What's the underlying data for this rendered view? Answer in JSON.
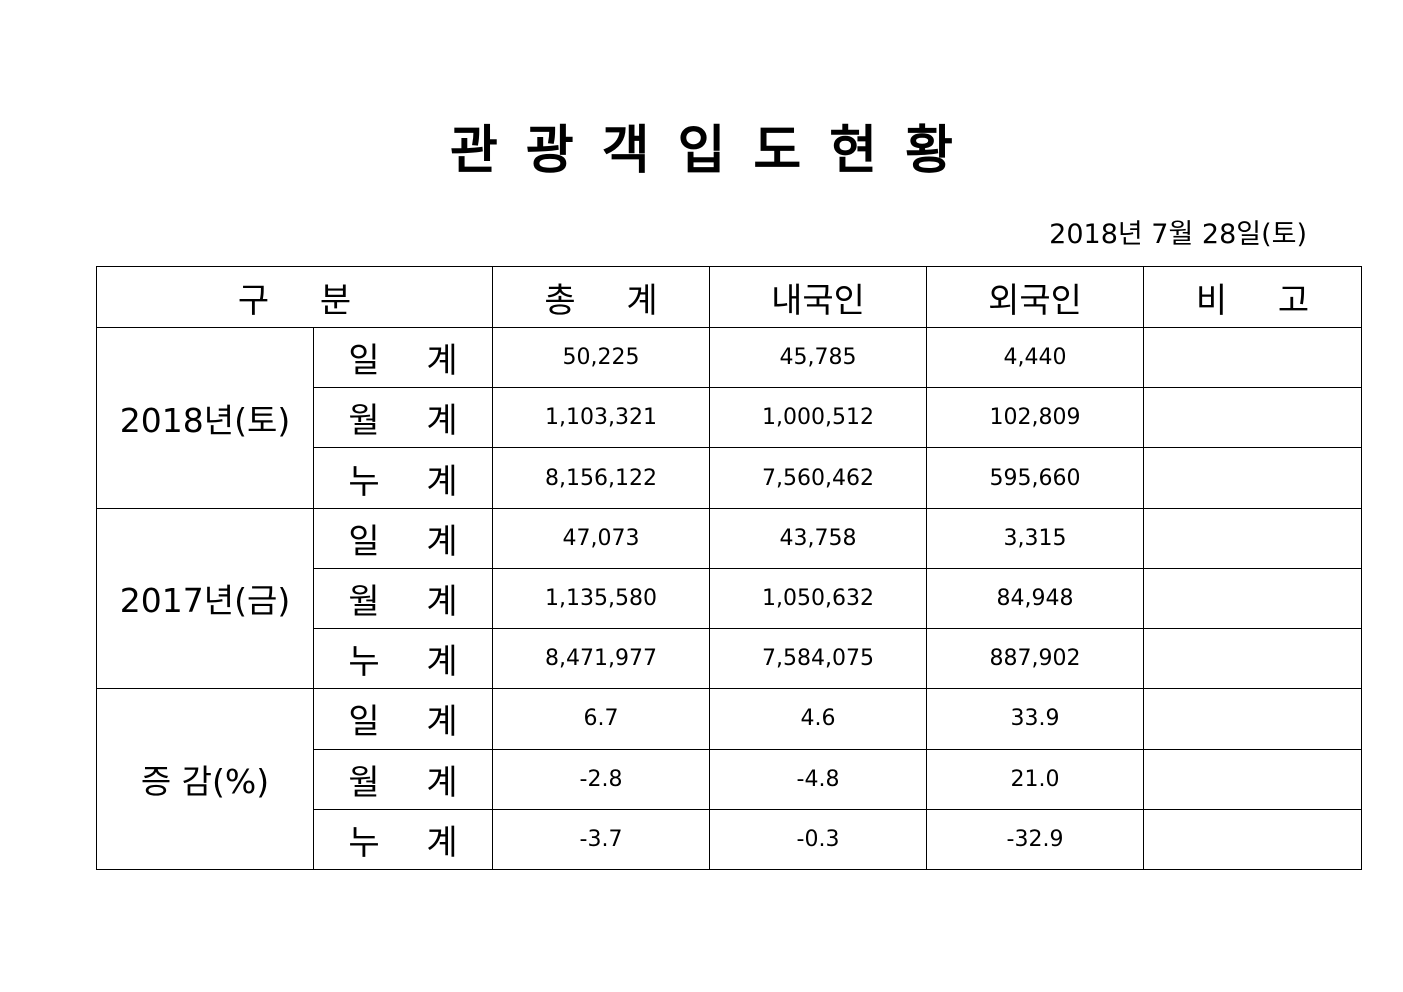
{
  "title": "관광객입도현황",
  "date": "2018년  7월  28일(토)",
  "headers": {
    "category": "구 분",
    "total": "총 계",
    "domestic": "내국인",
    "foreign": "외국인",
    "remarks": "비 고"
  },
  "groups": [
    {
      "label": "2018년(토)",
      "rows": [
        {
          "label": "일 계",
          "total": "50,225",
          "domestic": "45,785",
          "foreign": "4,440",
          "remarks": ""
        },
        {
          "label": "월 계",
          "total": "1,103,321",
          "domestic": "1,000,512",
          "foreign": "102,809",
          "remarks": ""
        },
        {
          "label": "누 계",
          "total": "8,156,122",
          "domestic": "7,560,462",
          "foreign": "595,660",
          "remarks": ""
        }
      ]
    },
    {
      "label": "2017년(금)",
      "rows": [
        {
          "label": "일 계",
          "total": "47,073",
          "domestic": "43,758",
          "foreign": "3,315",
          "remarks": ""
        },
        {
          "label": "월 계",
          "total": "1,135,580",
          "domestic": "1,050,632",
          "foreign": "84,948",
          "remarks": ""
        },
        {
          "label": "누 계",
          "total": "8,471,977",
          "domestic": "7,584,075",
          "foreign": "887,902",
          "remarks": ""
        }
      ]
    },
    {
      "label": "증 감(%)",
      "rows": [
        {
          "label": "일 계",
          "total": "6.7",
          "domestic": "4.6",
          "foreign": "33.9",
          "remarks": ""
        },
        {
          "label": "월 계",
          "total": "-2.8",
          "domestic": "-4.8",
          "foreign": "21.0",
          "remarks": ""
        },
        {
          "label": "누 계",
          "total": "-3.7",
          "domestic": "-0.3",
          "foreign": "-32.9",
          "remarks": ""
        }
      ]
    }
  ]
}
